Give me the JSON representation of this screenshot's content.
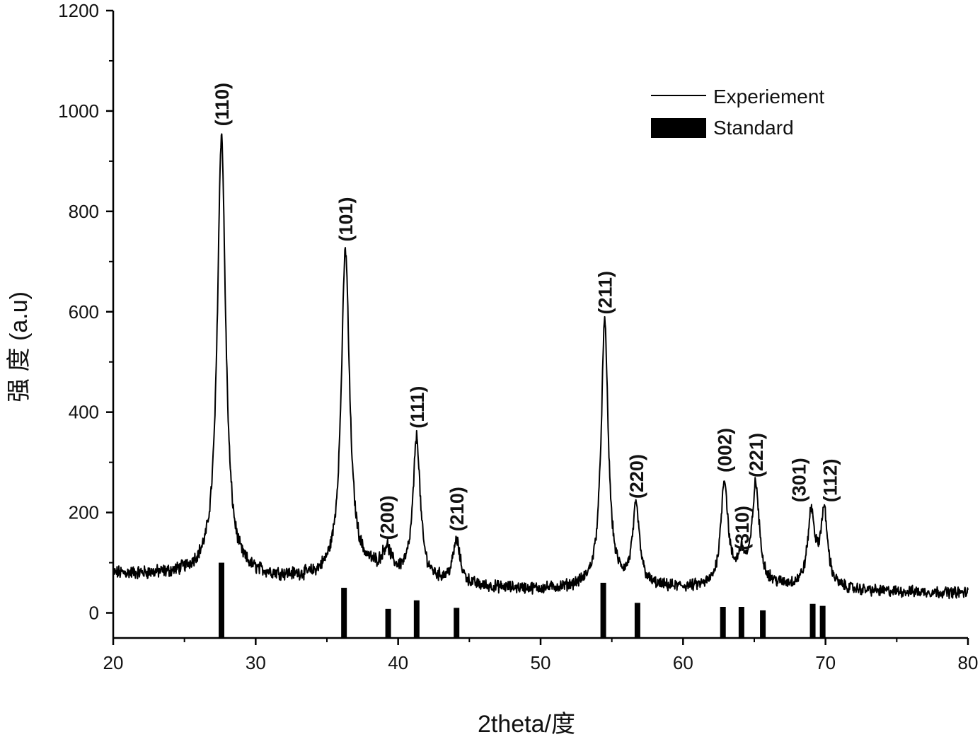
{
  "chart_data": {
    "type": "line",
    "xlabel": "2theta/度",
    "ylabel": "强 度 (a.u)",
    "xlim": [
      20,
      80
    ],
    "ylim": [
      -50,
      1200
    ],
    "x_ticks": [
      20,
      30,
      40,
      50,
      60,
      70,
      80
    ],
    "y_ticks": [
      0,
      200,
      400,
      600,
      800,
      1000,
      1200
    ],
    "grid": false,
    "legend": {
      "placement": "top-right",
      "entries": [
        {
          "label": "Experiement",
          "style": "line"
        },
        {
          "label": "Standard",
          "style": "bar"
        }
      ]
    },
    "series": [
      {
        "name": "Experiement",
        "type": "line",
        "baseline_points": [
          [
            20,
            78
          ],
          [
            24,
            76
          ],
          [
            26,
            80
          ],
          [
            30,
            72
          ],
          [
            34,
            67
          ],
          [
            36,
            72
          ],
          [
            38,
            80
          ],
          [
            40,
            70
          ],
          [
            42,
            62
          ],
          [
            46,
            50
          ],
          [
            50,
            46
          ],
          [
            54,
            50
          ],
          [
            58,
            48
          ],
          [
            62,
            48
          ],
          [
            64,
            56
          ],
          [
            66,
            52
          ],
          [
            70,
            46
          ],
          [
            74,
            42
          ],
          [
            80,
            40
          ]
        ],
        "peaks": [
          {
            "x": 27.6,
            "y": 950,
            "label": "(110)"
          },
          {
            "x": 36.3,
            "y": 720,
            "label": "(101)"
          },
          {
            "x": 39.2,
            "y": 120,
            "label": "(200)"
          },
          {
            "x": 41.3,
            "y": 345,
            "label": "(111)"
          },
          {
            "x": 44.1,
            "y": 140,
            "label": "(210)"
          },
          {
            "x": 54.5,
            "y": 575,
            "label": "(211)"
          },
          {
            "x": 56.7,
            "y": 205,
            "label": "(220)"
          },
          {
            "x": 62.9,
            "y": 260,
            "label": "(002)"
          },
          {
            "x": 64.1,
            "y": 105,
            "label": "(310)"
          },
          {
            "x": 65.1,
            "y": 250,
            "label": "(221)"
          },
          {
            "x": 69.0,
            "y": 192,
            "label": "(301)"
          },
          {
            "x": 69.9,
            "y": 195,
            "label": "(112)"
          }
        ]
      },
      {
        "name": "Standard",
        "type": "bar",
        "baseline": -50,
        "points": [
          {
            "x": 27.6,
            "y": 100
          },
          {
            "x": 36.2,
            "y": 50
          },
          {
            "x": 39.3,
            "y": 8
          },
          {
            "x": 41.3,
            "y": 25
          },
          {
            "x": 44.1,
            "y": 10
          },
          {
            "x": 54.4,
            "y": 60
          },
          {
            "x": 56.8,
            "y": 20
          },
          {
            "x": 62.8,
            "y": 12
          },
          {
            "x": 64.1,
            "y": 12
          },
          {
            "x": 65.6,
            "y": 5
          },
          {
            "x": 69.1,
            "y": 18
          },
          {
            "x": 69.8,
            "y": 14
          }
        ]
      }
    ]
  }
}
